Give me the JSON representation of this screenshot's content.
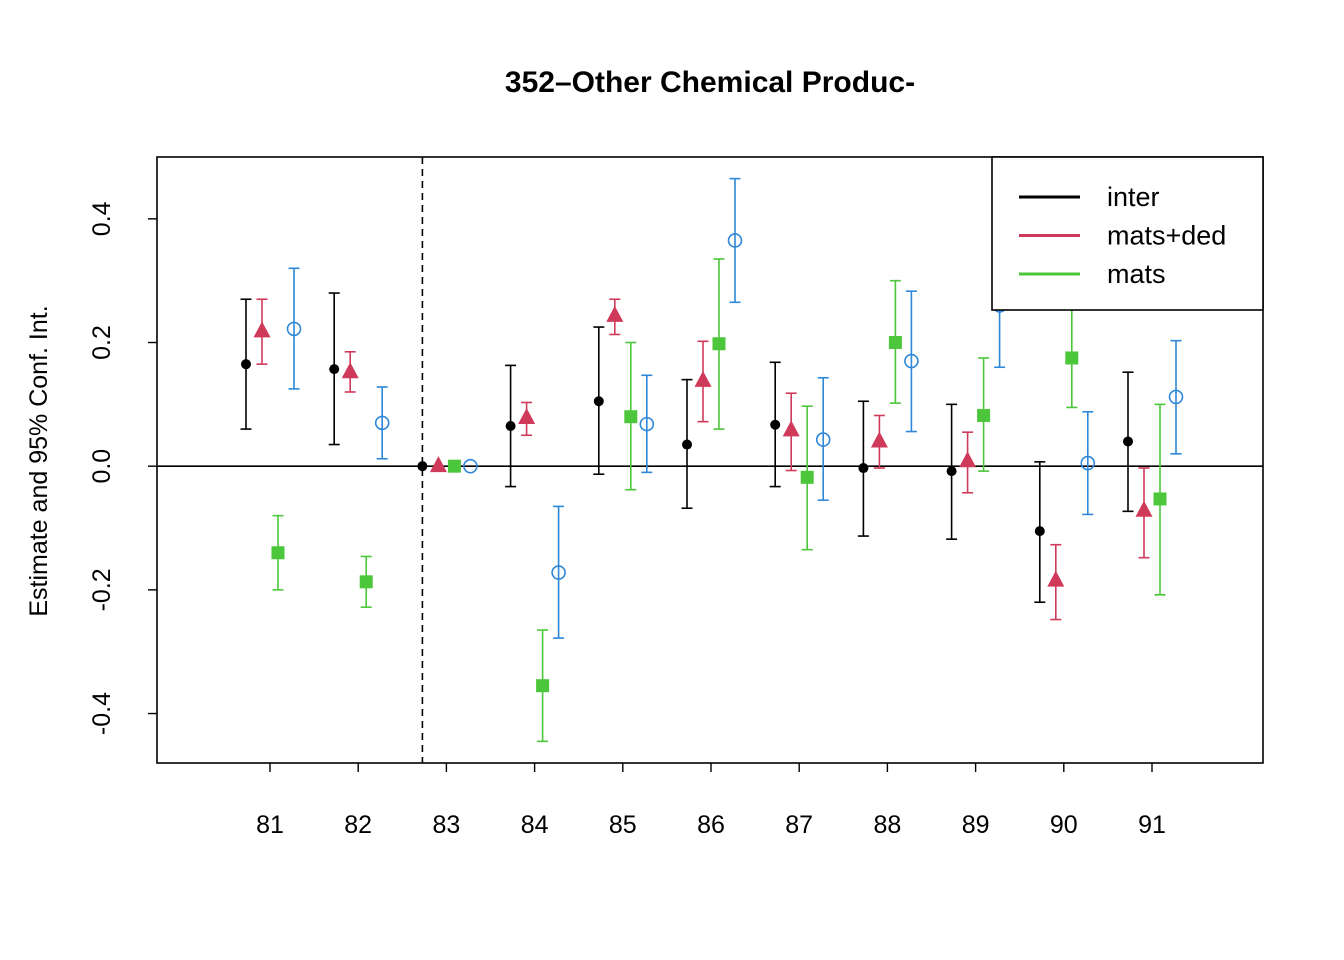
{
  "chart_data": {
    "type": "scatter",
    "title": "352–Other Chemical Produc-",
    "xlabel": "",
    "ylabel": "Estimate and 95% Conf. Int.",
    "categories": [
      "81",
      "82",
      "83",
      "84",
      "85",
      "86",
      "87",
      "88",
      "89",
      "90",
      "91"
    ],
    "ylim": [
      -0.48,
      0.5
    ],
    "yticks": [
      "-0.4",
      "-0.2",
      "0.0",
      "0.2",
      "0.4"
    ],
    "reference_category": "83",
    "hline": 0,
    "legend_position": "top-right",
    "series": [
      {
        "name": "inter",
        "color": "#000000",
        "marker": "filled-circle",
        "in_legend": true,
        "values": [
          0.165,
          0.157,
          0.0,
          0.065,
          0.105,
          0.035,
          0.067,
          -0.003,
          -0.008,
          -0.105,
          0.04
        ],
        "lower": [
          0.06,
          0.035,
          0.0,
          -0.033,
          -0.013,
          -0.068,
          -0.033,
          -0.113,
          -0.118,
          -0.22,
          -0.073
        ],
        "upper": [
          0.27,
          0.28,
          0.0,
          0.163,
          0.225,
          0.14,
          0.168,
          0.105,
          0.1,
          0.007,
          0.152
        ]
      },
      {
        "name": "mats+ded",
        "color": "#d03a5a",
        "marker": "filled-triangle",
        "in_legend": true,
        "values": [
          0.218,
          0.152,
          0.0,
          0.078,
          0.243,
          0.138,
          0.058,
          0.04,
          0.008,
          -0.185,
          -0.072
        ],
        "lower": [
          0.165,
          0.12,
          0.0,
          0.05,
          0.213,
          0.072,
          -0.007,
          -0.003,
          -0.043,
          -0.248,
          -0.148
        ],
        "upper": [
          0.27,
          0.185,
          0.0,
          0.103,
          0.27,
          0.202,
          0.118,
          0.082,
          0.055,
          -0.127,
          -0.003
        ]
      },
      {
        "name": "mats",
        "color": "#4cc63a",
        "marker": "filled-square",
        "in_legend": true,
        "values": [
          -0.14,
          -0.187,
          0.0,
          -0.355,
          0.08,
          0.198,
          -0.018,
          0.2,
          0.082,
          0.175,
          -0.053
        ],
        "lower": [
          -0.2,
          -0.228,
          0.0,
          -0.445,
          -0.038,
          0.06,
          -0.135,
          0.102,
          -0.008,
          0.095,
          -0.208
        ],
        "upper": [
          -0.08,
          -0.146,
          0.0,
          -0.265,
          0.2,
          0.335,
          0.097,
          0.3,
          0.175,
          0.255,
          0.1
        ]
      },
      {
        "name": "",
        "color": "#2e87d8",
        "marker": "open-circle",
        "in_legend": false,
        "values": [
          0.222,
          0.07,
          0.0,
          -0.172,
          0.068,
          0.365,
          0.043,
          0.17,
          0.26,
          0.005,
          0.112
        ],
        "lower": [
          0.125,
          0.012,
          0.0,
          -0.278,
          -0.01,
          0.265,
          -0.055,
          0.056,
          0.16,
          -0.078,
          0.02
        ],
        "upper": [
          0.32,
          0.128,
          0.0,
          -0.065,
          0.147,
          0.465,
          0.143,
          0.283,
          0.36,
          0.088,
          0.203
        ]
      }
    ]
  }
}
